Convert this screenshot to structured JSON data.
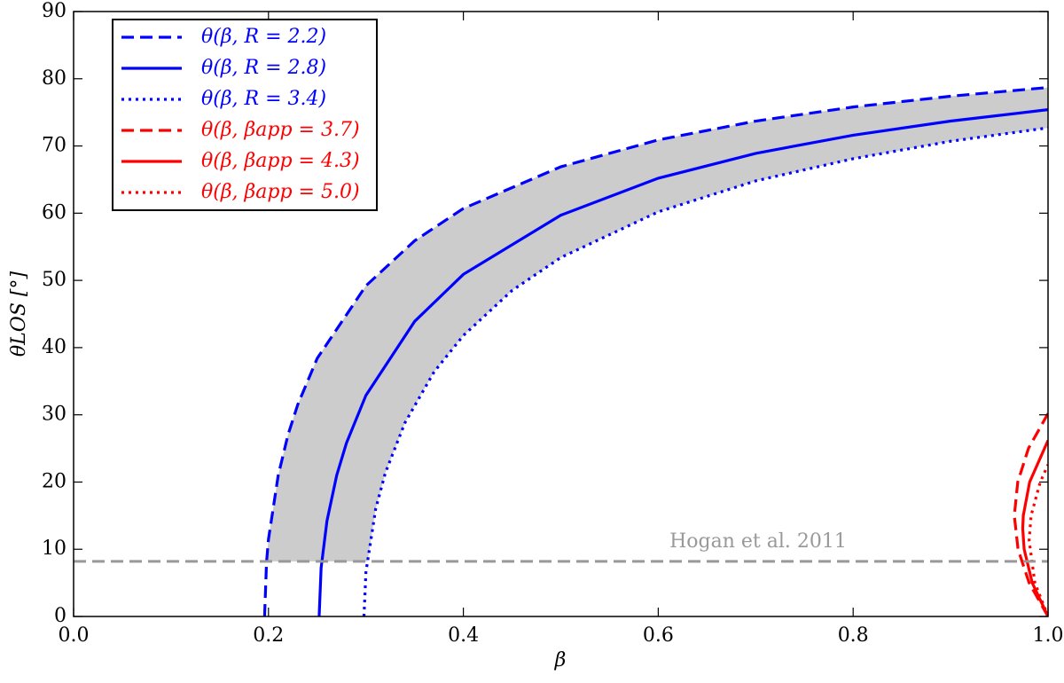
{
  "chart_data": {
    "type": "line",
    "xlabel": "β",
    "ylabel": "θLOS [°]",
    "xlim": [
      0,
      1
    ],
    "ylim": [
      0,
      90
    ],
    "xticks": [
      {
        "value": 0,
        "label": "0.0"
      },
      0.2,
      0.4,
      0.6,
      0.8,
      {
        "value": 1,
        "label": "1.0"
      }
    ],
    "yticks": [
      0,
      10,
      20,
      30,
      40,
      50,
      60,
      70,
      80,
      90
    ],
    "legend": "upper left",
    "fill_color": "#cccccc",
    "hline": {
      "value": 8.2,
      "label": "Hogan et al. 2011",
      "color": "#999999"
    },
    "series": [
      {
        "name": "θ(β, R = 2.2)",
        "color": "#0000ff",
        "linestyle": "dashed",
        "x": [
          0.196,
          0.198,
          0.2,
          0.21,
          0.22,
          0.23,
          0.25,
          0.3,
          0.35,
          0.4,
          0.5,
          0.6,
          0.7,
          0.8,
          0.9,
          1.0
        ],
        "values": [
          0,
          8.1,
          11.5,
          21.0,
          27.0,
          31.5,
          38.4,
          49.2,
          55.9,
          60.7,
          66.9,
          70.9,
          73.7,
          75.8,
          77.4,
          78.7
        ]
      },
      {
        "name": "θ(β, R = 2.8)",
        "color": "#0000ff",
        "linestyle": "solid",
        "x": [
          0.252,
          0.254,
          0.26,
          0.27,
          0.28,
          0.3,
          0.35,
          0.4,
          0.5,
          0.6,
          0.7,
          0.8,
          0.9,
          1.0
        ],
        "values": [
          0,
          7.2,
          14.2,
          21.0,
          25.8,
          32.9,
          43.9,
          50.9,
          59.7,
          65.2,
          68.9,
          71.6,
          73.7,
          75.4
        ]
      },
      {
        "name": "θ(β, R = 3.4)",
        "color": "#0000ff",
        "linestyle": "dotted",
        "x": [
          0.298,
          0.3,
          0.31,
          0.32,
          0.34,
          0.37,
          0.4,
          0.45,
          0.5,
          0.6,
          0.7,
          0.8,
          0.9,
          1.0
        ],
        "values": [
          0,
          6.6,
          16.0,
          21.4,
          28.8,
          36.4,
          41.8,
          48.5,
          53.4,
          60.2,
          64.8,
          68.1,
          70.7,
          72.7
        ]
      },
      {
        "name": "θ(β, βapp = 3.7)",
        "color": "#ff0000",
        "linestyle": "dashed",
        "x": [
          1.0,
          0.9806,
          0.9692,
          0.9654,
          0.9689,
          0.9799,
          1.0
        ],
        "values": [
          0,
          5,
          10,
          15,
          20,
          25,
          30.2
        ]
      },
      {
        "name": "θ(β, βapp = 4.3)",
        "color": "#ff0000",
        "linestyle": "solid",
        "x": [
          1.0,
          0.9838,
          0.9755,
          0.974,
          0.9746,
          0.9811,
          1.0
        ],
        "values": [
          0,
          5,
          10,
          13.1,
          15,
          20,
          26.2
        ]
      },
      {
        "name": "θ(β, βapp = 5.0)",
        "color": "#ff0000",
        "linestyle": "dotted",
        "x": [
          1.0,
          0.9865,
          0.9806,
          0.9826,
          0.992,
          1.0
        ],
        "values": [
          0,
          5,
          11.3,
          15,
          20,
          22.6
        ]
      }
    ]
  }
}
